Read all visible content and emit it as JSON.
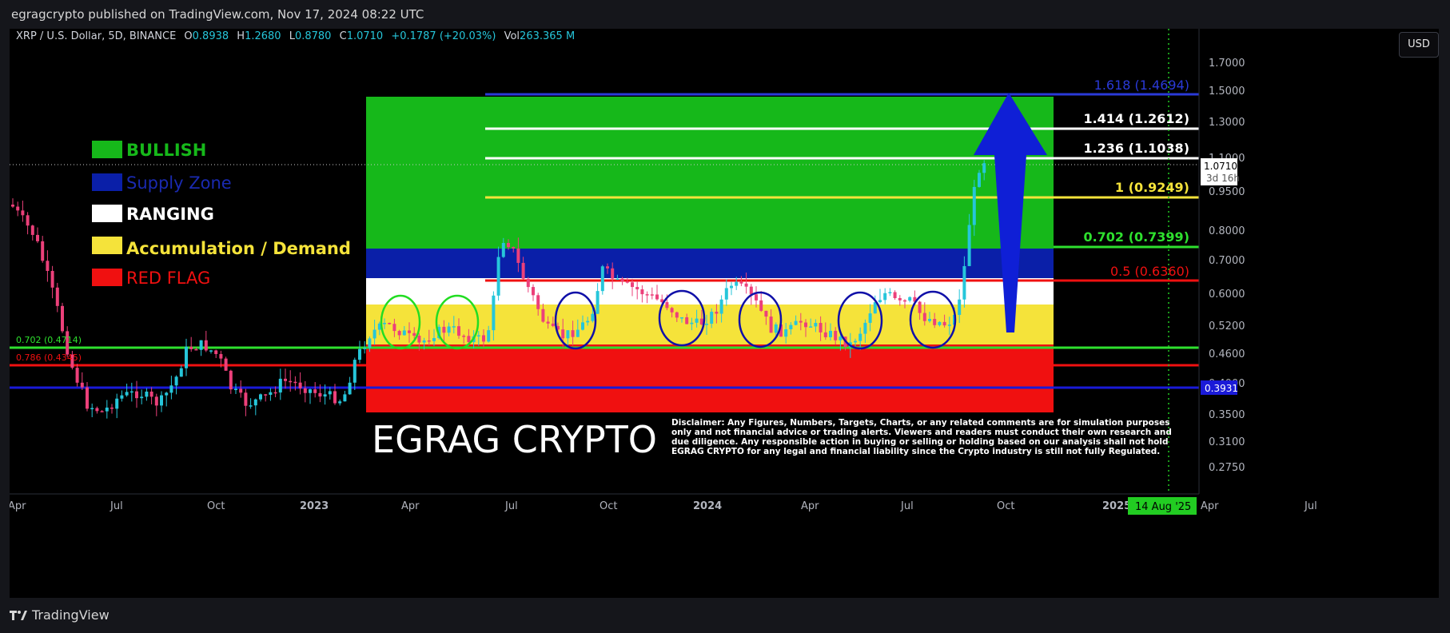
{
  "publisher_line": "egragcrypto published on TradingView.com, Nov 17, 2024 08:22 UTC",
  "legend": {
    "symbol": "XRP / U.S. Dollar, 5D, BINANCE",
    "o_label": "O",
    "o_value": "0.8938",
    "h_label": "H",
    "h_value": "1.2680",
    "l_label": "L",
    "l_value": "0.8780",
    "c_label": "C",
    "c_value": "1.0710",
    "change": "+0.1787 (+20.03%)",
    "vol_label": "Vol",
    "vol_value": "263.365 M"
  },
  "currency_button": "USD",
  "zone_legend": [
    {
      "label": "BULLISH",
      "color": "#16b81a",
      "text_color": "#16b81a"
    },
    {
      "label": "Supply Zone",
      "color": "#0a1fa8",
      "text_color": "#1a2ab0"
    },
    {
      "label": "RANGING",
      "color": "#ffffff",
      "text_color": "#ffffff"
    },
    {
      "label": "Accumulation / Demand",
      "color": "#f5e33a",
      "text_color": "#f5e33a"
    },
    {
      "label": "RED FLAG",
      "color": "#f01010",
      "text_color": "#f01010"
    }
  ],
  "fib_labels": [
    {
      "text": "1.618 (1.4694)",
      "color": "#2a3ad8",
      "price": 1.4694
    },
    {
      "text": "1.414 (1.2612)",
      "color": "#ffffff",
      "price": 1.2612
    },
    {
      "text": "1.236 (1.1038)",
      "color": "#ffffff",
      "price": 1.1038
    },
    {
      "text": "1 (0.9249)",
      "color": "#f5e33a",
      "price": 0.9249
    },
    {
      "text": "0.702 (0.7399)",
      "color": "#2ee02e",
      "price": 0.7399
    },
    {
      "text": "0.5 (0.6360)",
      "color": "#f01010",
      "price": 0.636
    }
  ],
  "old_fib_labels": [
    {
      "text": "0.702 (0.4714)",
      "color": "#2ee02e"
    },
    {
      "text": "0.786 (0.4345)",
      "color": "#f01010"
    }
  ],
  "price_axis": [
    "1.7000",
    "1.5000",
    "1.3000",
    "1.1000",
    "0.9500",
    "0.8000",
    "0.7000",
    "0.6000",
    "0.5200",
    "0.4600",
    "0.4000",
    "0.3500",
    "0.3100",
    "0.2750"
  ],
  "current_price": {
    "value": "1.0710",
    "countdown": "3d 16h"
  },
  "blue_line_price": "0.3931",
  "time_axis": [
    "Apr",
    "Jul",
    "Oct",
    "2023",
    "Apr",
    "Jul",
    "Oct",
    "2024",
    "Apr",
    "Jul",
    "Oct",
    "2025",
    "Apr",
    "Jul"
  ],
  "time_marker": "14 Aug '25",
  "watermark": "EGRAG CRYPTO",
  "disclaimer": [
    "Disclaimer: Any Figures, Numbers, Targets, Charts, or any related comments are for simulation purposes",
    "only and not financial advice or trading alerts. Viewers and readers must conduct their own research and",
    "due diligence. Any responsible action in buying or selling or holding based on our analysis shall not hold",
    "EGRAG CRYPTO for any legal and financial liability since the Crypto industry is still not fully Regulated."
  ],
  "brand": "TradingView",
  "colors": {
    "up": "#26c6da",
    "down": "#ec407a",
    "green": "#16b81a",
    "blue": "#0a1fa8",
    "yellow": "#f5e33a",
    "red": "#f01010"
  }
}
